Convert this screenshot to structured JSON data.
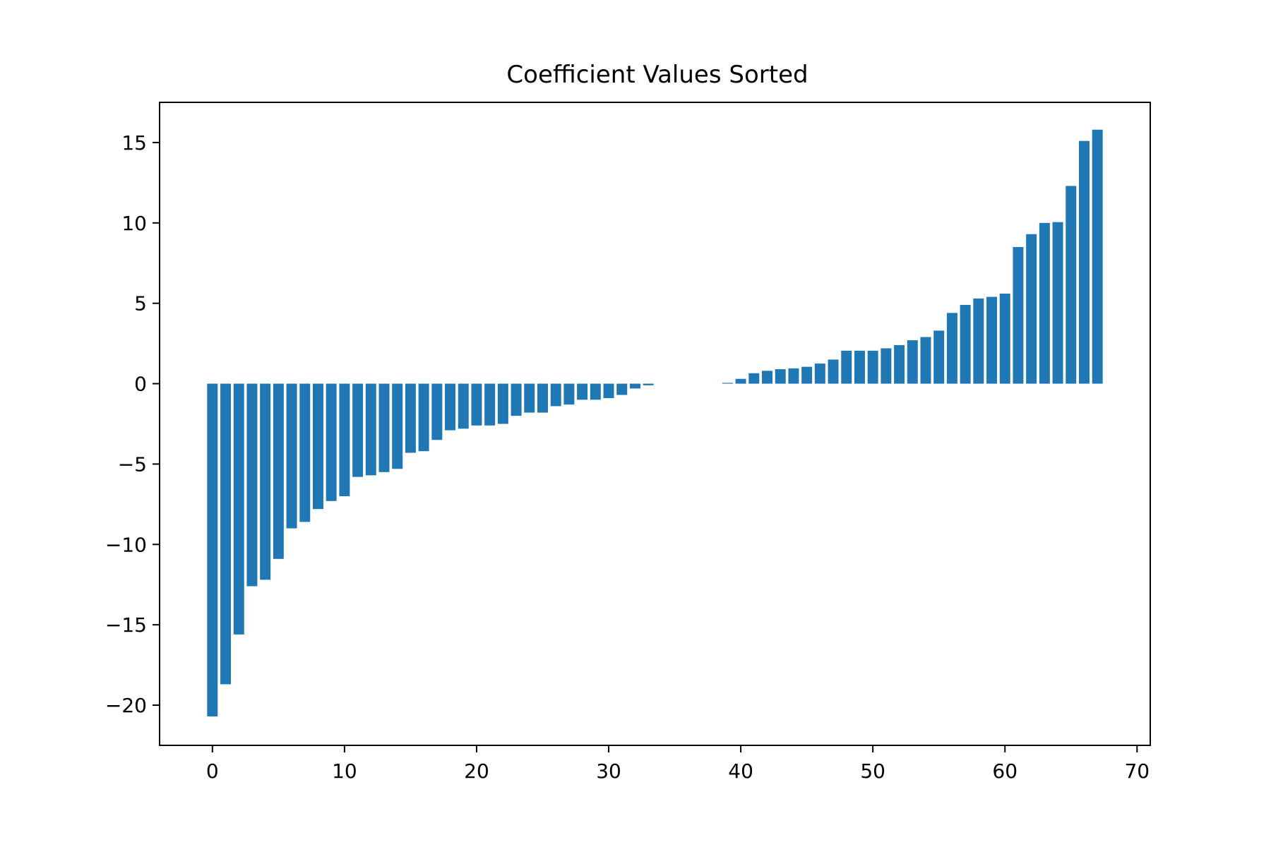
{
  "chart_data": {
    "type": "bar",
    "title": "Coefficient Values Sorted",
    "xlabel": "",
    "ylabel": "",
    "xlim": [
      -4,
      71
    ],
    "ylim": [
      -22.5,
      17.5
    ],
    "xticks": [
      0,
      10,
      20,
      30,
      40,
      50,
      60,
      70
    ],
    "xtick_labels": [
      "0",
      "10",
      "20",
      "30",
      "40",
      "50",
      "60",
      "70"
    ],
    "yticks": [
      -20,
      -15,
      -10,
      -5,
      0,
      5,
      10,
      15
    ],
    "ytick_labels": [
      "−20",
      "−15",
      "−10",
      "−5",
      "0",
      "5",
      "10",
      "15"
    ],
    "grid": false,
    "bar_color": "#1f77b4",
    "x": [
      0,
      1,
      2,
      3,
      4,
      5,
      6,
      7,
      8,
      9,
      10,
      11,
      12,
      13,
      14,
      15,
      16,
      17,
      18,
      19,
      20,
      21,
      22,
      23,
      24,
      25,
      26,
      27,
      28,
      29,
      30,
      31,
      32,
      33,
      34,
      35,
      36,
      37,
      38,
      39,
      40,
      41,
      42,
      43,
      44,
      45,
      46,
      47,
      48,
      49,
      50,
      51,
      52,
      53,
      54,
      55,
      56,
      57,
      58,
      59,
      60,
      61,
      62,
      63,
      64,
      65,
      66,
      67
    ],
    "values": [
      -20.7,
      -18.7,
      -15.6,
      -12.6,
      -12.2,
      -10.9,
      -9.0,
      -8.6,
      -7.8,
      -7.3,
      -7.0,
      -5.8,
      -5.7,
      -5.5,
      -5.3,
      -4.3,
      -4.2,
      -3.5,
      -2.9,
      -2.8,
      -2.6,
      -2.6,
      -2.5,
      -2.0,
      -1.8,
      -1.8,
      -1.4,
      -1.3,
      -1.0,
      -1.0,
      -0.9,
      -0.7,
      -0.3,
      -0.1,
      0,
      0,
      0,
      0,
      0,
      0.05,
      0.3,
      0.65,
      0.8,
      0.9,
      0.95,
      1.05,
      1.25,
      1.5,
      2.05,
      2.05,
      2.05,
      2.2,
      2.4,
      2.7,
      2.9,
      3.3,
      4.4,
      4.9,
      5.3,
      5.4,
      5.6,
      8.5,
      9.3,
      10.0,
      10.05,
      12.3,
      15.1,
      15.8
    ]
  }
}
